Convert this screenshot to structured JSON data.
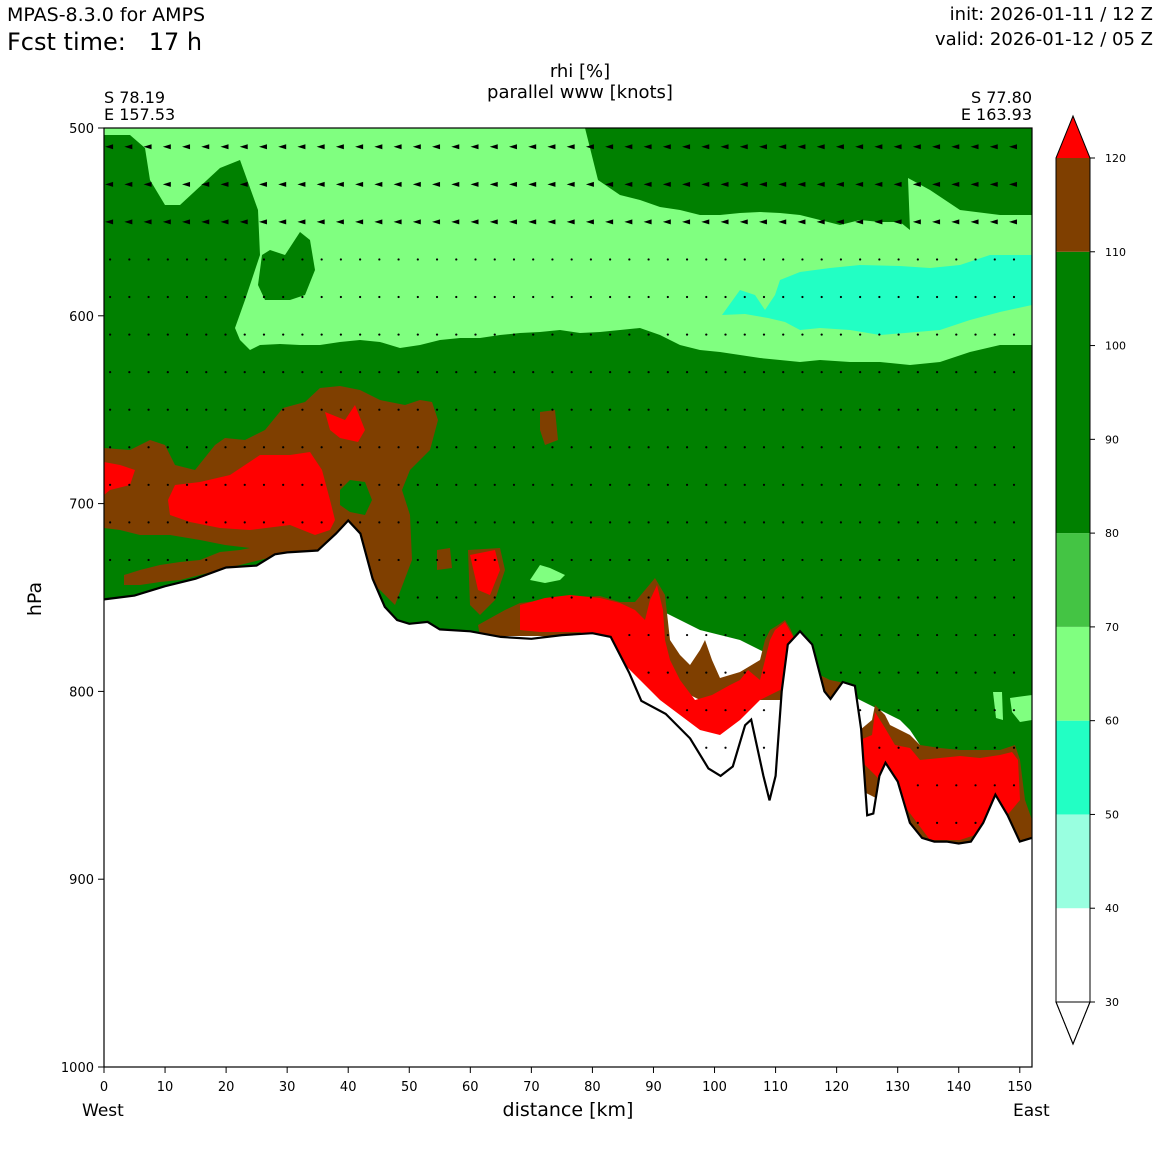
{
  "header": {
    "model": "MPAS-8.3.0 for AMPS",
    "fcst_time": "Fcst time:   17 h",
    "init": "init: 2026-01-11 / 12 Z",
    "valid": "valid: 2026-01-12 / 05 Z"
  },
  "corners": {
    "left_lat": "S 78.19",
    "left_lon": "E 157.53",
    "right_lat": "S 77.80",
    "right_lon": "E 163.93"
  },
  "chart_data": {
    "type": "cross-section contour",
    "title": "rhi [%]",
    "subtitle": "parallel www [knots]",
    "xlabel": "distance [km]",
    "ylabel": "hPa",
    "x_left_label": "West",
    "x_right_label": "East",
    "xlim": [
      0,
      152
    ],
    "ylim": [
      1000,
      500
    ],
    "xticks": [
      0,
      10,
      20,
      30,
      40,
      50,
      60,
      70,
      80,
      90,
      100,
      110,
      120,
      130,
      140,
      150
    ],
    "yticks": [
      500,
      600,
      700,
      800,
      900,
      1000
    ],
    "colorbar": {
      "ticks": [
        30,
        40,
        50,
        60,
        70,
        80,
        90,
        100,
        110,
        120
      ],
      "bins": [
        {
          "from": 30,
          "to": 40,
          "color": "#ffffff"
        },
        {
          "from": 40,
          "to": 50,
          "color": "#99ffe0"
        },
        {
          "from": 50,
          "to": 60,
          "color": "#22ffc4"
        },
        {
          "from": 60,
          "to": 70,
          "color": "#80ff80"
        },
        {
          "from": 70,
          "to": 80,
          "color": "#44c444"
        },
        {
          "from": 80,
          "to": 110,
          "color": "#008000"
        },
        {
          "from": 110,
          "to": 120,
          "color": "#7f3f00"
        },
        {
          "from": 120,
          "to": 130,
          "color": "#ff0000"
        }
      ],
      "extend": "both"
    },
    "terrain_pressure": [
      [
        0,
        751
      ],
      [
        5,
        749
      ],
      [
        10,
        744
      ],
      [
        15,
        740
      ],
      [
        20,
        734
      ],
      [
        25,
        733
      ],
      [
        28,
        727
      ],
      [
        30,
        726
      ],
      [
        35,
        725
      ],
      [
        38,
        716
      ],
      [
        40,
        709
      ],
      [
        42,
        716
      ],
      [
        44,
        740
      ],
      [
        46,
        755
      ],
      [
        48,
        762
      ],
      [
        50,
        764
      ],
      [
        53,
        763
      ],
      [
        55,
        767
      ],
      [
        60,
        768
      ],
      [
        65,
        771
      ],
      [
        70,
        772
      ],
      [
        75,
        770
      ],
      [
        80,
        769
      ],
      [
        83,
        771
      ],
      [
        86,
        790
      ],
      [
        88,
        805
      ],
      [
        92,
        812
      ],
      [
        96,
        825
      ],
      [
        99,
        841
      ],
      [
        101,
        845
      ],
      [
        103,
        840
      ],
      [
        105,
        818
      ],
      [
        106,
        815
      ],
      [
        108,
        845
      ],
      [
        109,
        858
      ],
      [
        110,
        845
      ],
      [
        111,
        800
      ],
      [
        112,
        775
      ],
      [
        114,
        768
      ],
      [
        116,
        775
      ],
      [
        118,
        800
      ],
      [
        119,
        804
      ],
      [
        121,
        795
      ],
      [
        123,
        797
      ],
      [
        124,
        820
      ],
      [
        125,
        866
      ],
      [
        126,
        865
      ],
      [
        127,
        845
      ],
      [
        128,
        838
      ],
      [
        130,
        848
      ],
      [
        132,
        870
      ],
      [
        134,
        878
      ],
      [
        136,
        880
      ],
      [
        138,
        880
      ],
      [
        140,
        881
      ],
      [
        142,
        880
      ],
      [
        144,
        870
      ],
      [
        146,
        855
      ],
      [
        148,
        866
      ],
      [
        150,
        880
      ],
      [
        152,
        878
      ]
    ],
    "rhi_regions": [
      {
        "label": "60-70",
        "desc": "upper layer 500-620 hPa, 0-152 km"
      },
      {
        "label": "50-60",
        "desc": "band near 575-610 hPa, 100-152 km"
      },
      {
        "label": "110-120",
        "desc": "layer 640-760 hPa, 0-55 km; near ground 110-152 km"
      },
      {
        "label": ">120",
        "desc": "cores near 690-720 hPa at 10-37 km; near ground 75-150 km"
      }
    ],
    "wind_barb_levels": [
      510,
      530,
      550,
      570,
      590,
      610,
      630,
      650,
      670,
      690,
      710,
      730,
      750,
      770,
      790,
      810,
      830,
      850,
      870
    ]
  }
}
